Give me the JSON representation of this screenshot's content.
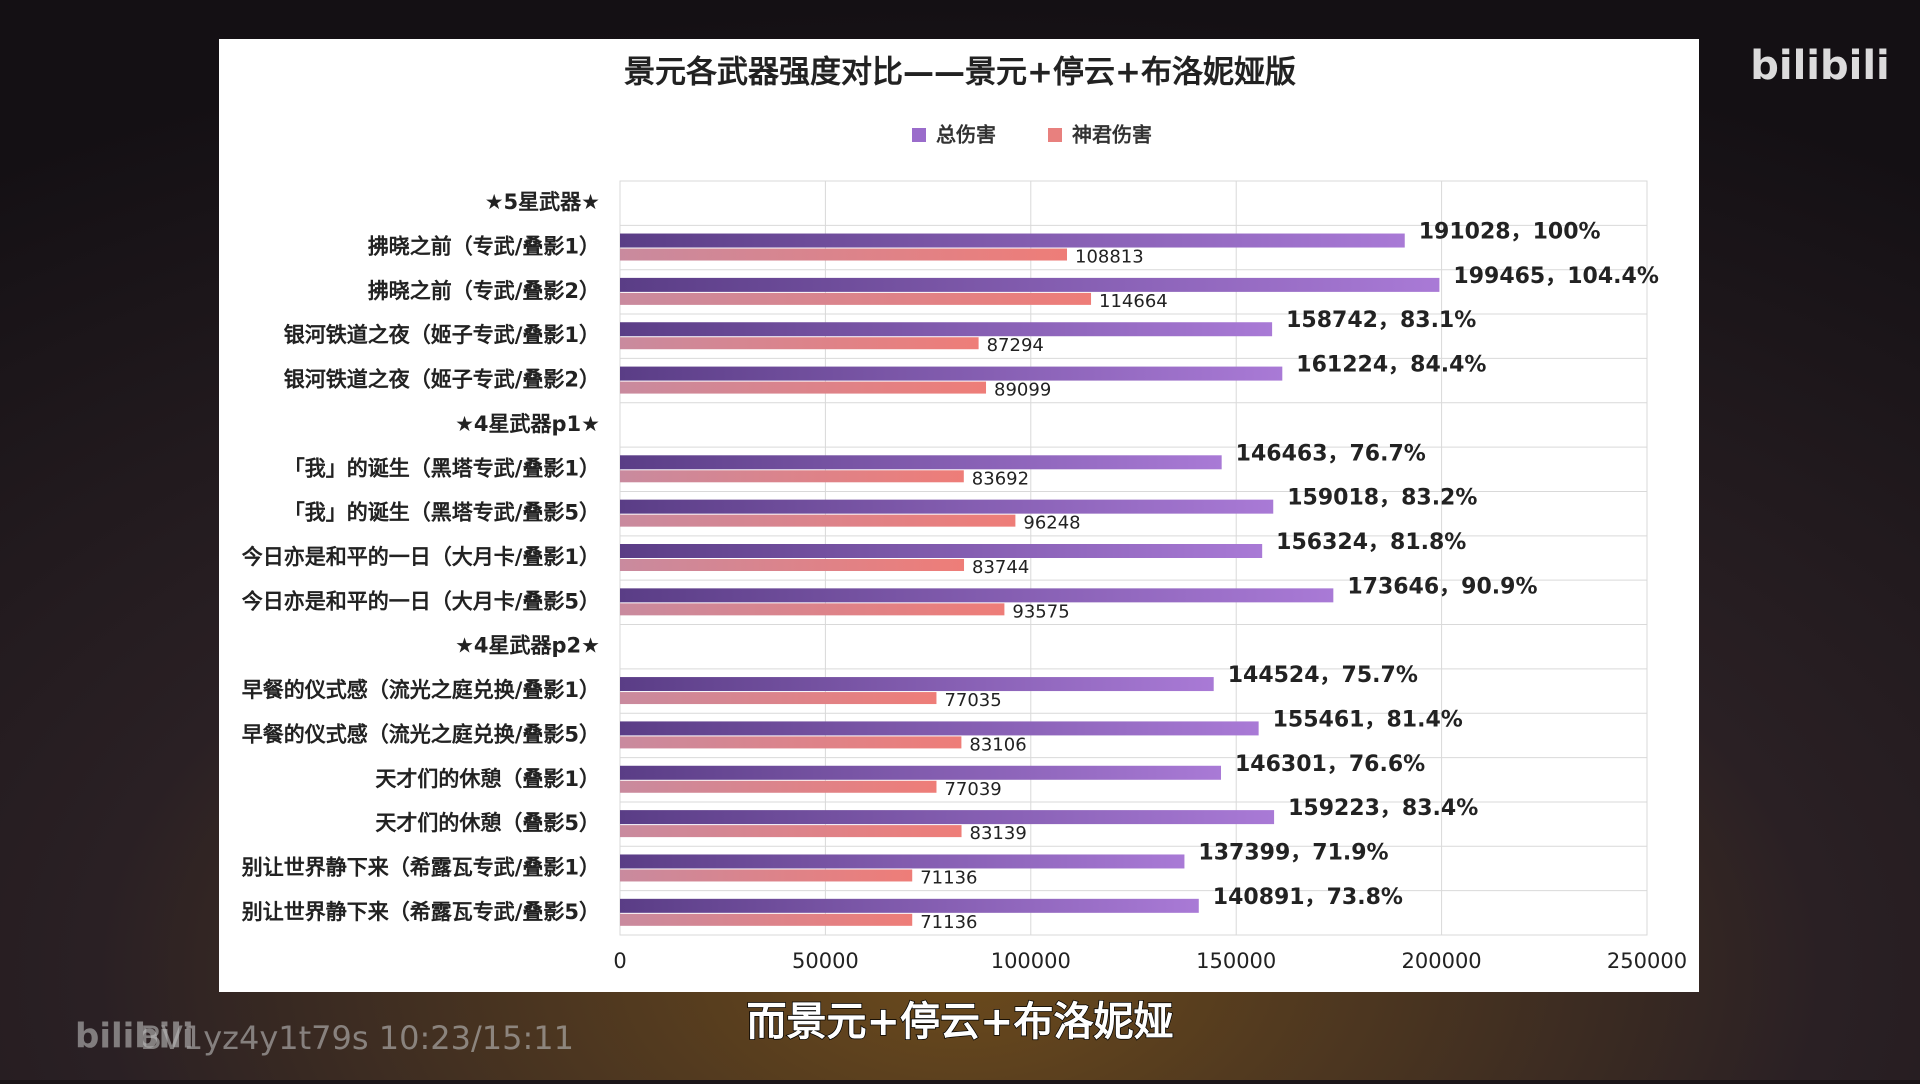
{
  "chart_data": {
    "type": "bar",
    "orientation": "horizontal",
    "title": "景元各武器强度对比——景元+停云+布洛妮娅版",
    "categories": [
      "★5星武器★",
      "拂晓之前（专武/叠影1）",
      "拂晓之前（专武/叠影2）",
      "银河铁道之夜（姬子专武/叠影1）",
      "银河铁道之夜（姬子专武/叠影2）",
      "★4星武器p1★",
      "「我」的诞生（黑塔专武/叠影1）",
      "「我」的诞生（黑塔专武/叠影5）",
      "今日亦是和平的一日（大月卡/叠影1）",
      "今日亦是和平的一日（大月卡/叠影5）",
      "★4星武器p2★",
      "早餐的仪式感（流光之庭兑换/叠影1）",
      "早餐的仪式感（流光之庭兑换/叠影5）",
      "天才们的休憩（叠影1）",
      "天才们的休憩（叠影5）",
      "别让世界静下来（希露瓦专武/叠影1）",
      "别让世界静下来（希露瓦专武/叠影5）"
    ],
    "series": [
      {
        "name": "总伤害",
        "color": "#9a6ccb",
        "values": [
          null,
          191028,
          199465,
          158742,
          161224,
          null,
          146463,
          159018,
          156324,
          173646,
          null,
          144524,
          155461,
          146301,
          159223,
          137399,
          140891
        ],
        "value_labels": [
          null,
          "191028，100%",
          "199465，104.4%",
          "158742，83.1%",
          "161224，84.4%",
          null,
          "146463，76.7%",
          "159018，83.2%",
          "156324，81.8%",
          "173646，90.9%",
          null,
          "144524，75.7%",
          "155461，81.4%",
          "146301，76.6%",
          "159223，83.4%",
          "137399，71.9%",
          "140891，73.8%"
        ]
      },
      {
        "name": "神君伤害",
        "color": "#e8807e",
        "values": [
          null,
          108813,
          114664,
          87294,
          89099,
          null,
          83692,
          96248,
          83744,
          93575,
          null,
          77035,
          83106,
          77039,
          83139,
          71136,
          71136
        ]
      }
    ],
    "xlim": [
      0,
      250000
    ],
    "xticks": [
      0,
      50000,
      100000,
      150000,
      200000,
      250000
    ],
    "grid": true,
    "legend": "top"
  },
  "video": {
    "subtitle": "而景元+停云+布洛妮娅",
    "watermark": "BV1yz4y1t79s 10:23/15:11",
    "logo": "bilibili"
  }
}
